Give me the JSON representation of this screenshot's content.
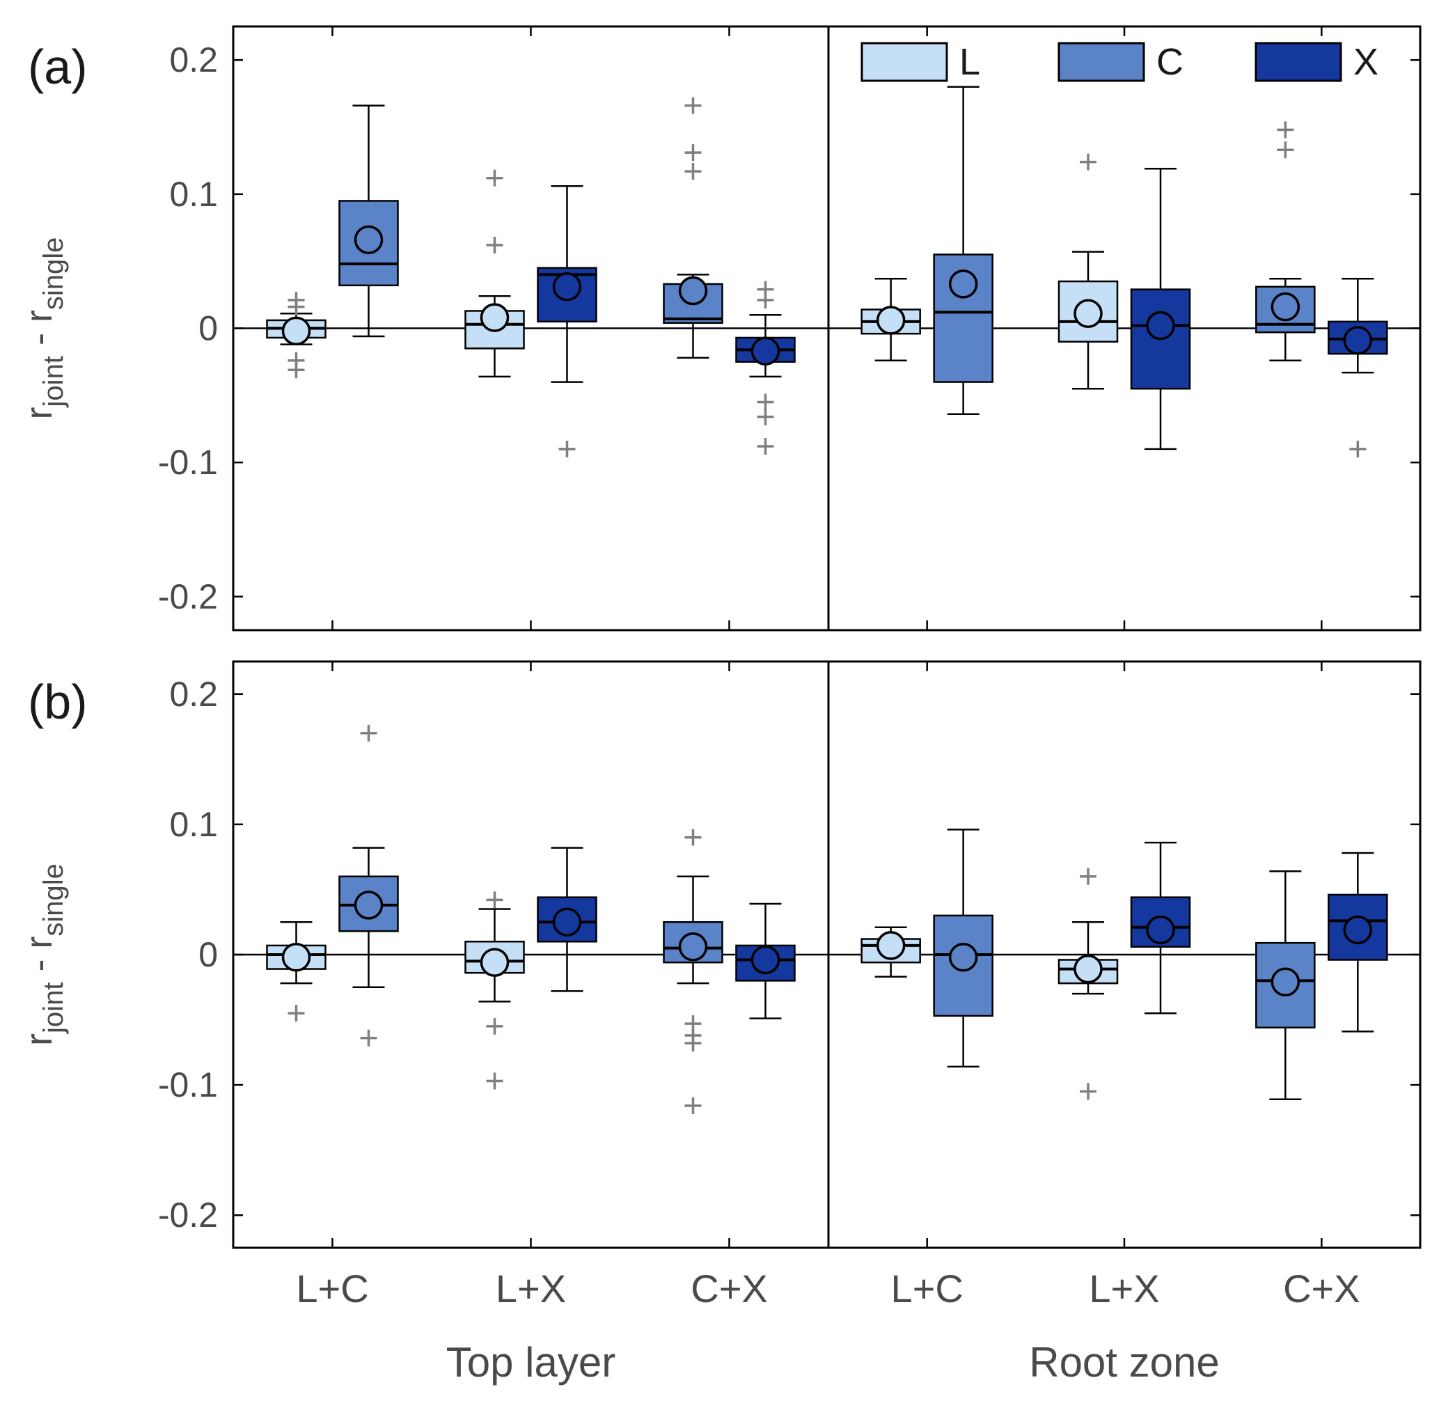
{
  "chart_data": {
    "type": "box",
    "title": "",
    "ylabel_parts": [
      {
        "text": "r",
        "sub": false
      },
      {
        "text": "joint",
        "sub": true
      },
      {
        "text": " - r",
        "sub": false
      },
      {
        "text": "single",
        "sub": true
      }
    ],
    "ylim": [
      -0.225,
      0.225
    ],
    "yticks": [
      {
        "label": "0.2",
        "value": 0.2
      },
      {
        "label": "0.1",
        "value": 0.1
      },
      {
        "label": "0",
        "value": 0
      },
      {
        "label": "-0.1",
        "value": -0.1
      },
      {
        "label": "-0.2",
        "value": -0.2
      }
    ],
    "categories": [
      "L+C",
      "L+X",
      "C+X"
    ],
    "legend": [
      "L",
      "C",
      "X"
    ],
    "series_colors": {
      "L": "#C5DFF6",
      "C": "#5B83C7",
      "X": "#15389E"
    },
    "axis_color": "#000000",
    "text_color": "#4a4a4a",
    "outlier_color": "#7f7f7f",
    "grid": false,
    "legend_position": "top-right-inside",
    "panels": [
      {
        "label": "(a)",
        "subpanels": [
          {
            "xlabel": "Top layer",
            "groups": [
              {
                "category": "L+C",
                "boxes": [
                  {
                    "series": "L",
                    "whisker_low": -0.012,
                    "q1": -0.007,
                    "median": 0.0,
                    "q3": 0.006,
                    "whisker_high": 0.011,
                    "mean": -0.002,
                    "outliers": [
                      0.021,
                      0.016,
                      -0.024,
                      -0.031
                    ]
                  },
                  {
                    "series": "C",
                    "whisker_low": -0.006,
                    "q1": 0.032,
                    "median": 0.048,
                    "q3": 0.095,
                    "whisker_high": 0.166,
                    "mean": 0.066,
                    "outliers": []
                  }
                ]
              },
              {
                "category": "L+X",
                "boxes": [
                  {
                    "series": "L",
                    "whisker_low": -0.036,
                    "q1": -0.015,
                    "median": 0.003,
                    "q3": 0.013,
                    "whisker_high": 0.024,
                    "mean": 0.008,
                    "outliers": [
                      0.112,
                      0.062
                    ]
                  },
                  {
                    "series": "X",
                    "whisker_low": -0.04,
                    "q1": 0.005,
                    "median": 0.04,
                    "q3": 0.045,
                    "whisker_high": 0.106,
                    "mean": 0.031,
                    "outliers": [
                      -0.09
                    ]
                  }
                ]
              },
              {
                "category": "C+X",
                "boxes": [
                  {
                    "series": "C",
                    "whisker_low": -0.022,
                    "q1": 0.004,
                    "median": 0.007,
                    "q3": 0.033,
                    "whisker_high": 0.04,
                    "mean": 0.028,
                    "outliers": [
                      0.166,
                      0.131,
                      0.117
                    ]
                  },
                  {
                    "series": "X",
                    "whisker_low": -0.036,
                    "q1": -0.025,
                    "median": -0.016,
                    "q3": -0.007,
                    "whisker_high": 0.01,
                    "mean": -0.017,
                    "outliers": [
                      0.029,
                      0.021,
                      -0.055,
                      -0.066,
                      -0.088
                    ]
                  }
                ]
              }
            ]
          },
          {
            "xlabel": "Root zone",
            "groups": [
              {
                "category": "L+C",
                "boxes": [
                  {
                    "series": "L",
                    "whisker_low": -0.024,
                    "q1": -0.004,
                    "median": 0.005,
                    "q3": 0.014,
                    "whisker_high": 0.037,
                    "mean": 0.006,
                    "outliers": []
                  },
                  {
                    "series": "C",
                    "whisker_low": -0.064,
                    "q1": -0.04,
                    "median": 0.012,
                    "q3": 0.055,
                    "whisker_high": 0.18,
                    "mean": 0.033,
                    "outliers": []
                  }
                ]
              },
              {
                "category": "L+X",
                "boxes": [
                  {
                    "series": "L",
                    "whisker_low": -0.045,
                    "q1": -0.01,
                    "median": 0.005,
                    "q3": 0.035,
                    "whisker_high": 0.057,
                    "mean": 0.011,
                    "outliers": [
                      0.124
                    ]
                  },
                  {
                    "series": "X",
                    "whisker_low": -0.09,
                    "q1": -0.045,
                    "median": 0.002,
                    "q3": 0.029,
                    "whisker_high": 0.119,
                    "mean": 0.002,
                    "outliers": []
                  }
                ]
              },
              {
                "category": "C+X",
                "boxes": [
                  {
                    "series": "C",
                    "whisker_low": -0.024,
                    "q1": -0.003,
                    "median": 0.003,
                    "q3": 0.031,
                    "whisker_high": 0.037,
                    "mean": 0.016,
                    "outliers": [
                      0.148,
                      0.133
                    ]
                  },
                  {
                    "series": "X",
                    "whisker_low": -0.033,
                    "q1": -0.019,
                    "median": -0.008,
                    "q3": 0.005,
                    "whisker_high": 0.037,
                    "mean": -0.009,
                    "outliers": [
                      -0.09
                    ]
                  }
                ]
              }
            ]
          }
        ]
      },
      {
        "label": "(b)",
        "subpanels": [
          {
            "xlabel": "Top layer",
            "groups": [
              {
                "category": "L+C",
                "boxes": [
                  {
                    "series": "L",
                    "whisker_low": -0.022,
                    "q1": -0.011,
                    "median": 0.0,
                    "q3": 0.007,
                    "whisker_high": 0.025,
                    "mean": -0.002,
                    "outliers": [
                      -0.045
                    ]
                  },
                  {
                    "series": "C",
                    "whisker_low": -0.025,
                    "q1": 0.018,
                    "median": 0.038,
                    "q3": 0.06,
                    "whisker_high": 0.082,
                    "mean": 0.038,
                    "outliers": [
                      0.17,
                      -0.064
                    ]
                  }
                ]
              },
              {
                "category": "L+X",
                "boxes": [
                  {
                    "series": "L",
                    "whisker_low": -0.036,
                    "q1": -0.014,
                    "median": -0.005,
                    "q3": 0.01,
                    "whisker_high": 0.035,
                    "mean": -0.006,
                    "outliers": [
                      0.042,
                      -0.055,
                      -0.097
                    ]
                  },
                  {
                    "series": "X",
                    "whisker_low": -0.028,
                    "q1": 0.01,
                    "median": 0.025,
                    "q3": 0.044,
                    "whisker_high": 0.082,
                    "mean": 0.025,
                    "outliers": []
                  }
                ]
              },
              {
                "category": "C+X",
                "boxes": [
                  {
                    "series": "C",
                    "whisker_low": -0.022,
                    "q1": -0.006,
                    "median": 0.005,
                    "q3": 0.025,
                    "whisker_high": 0.06,
                    "mean": 0.006,
                    "outliers": [
                      0.09,
                      -0.053,
                      -0.062,
                      -0.068,
                      -0.116
                    ]
                  },
                  {
                    "series": "X",
                    "whisker_low": -0.049,
                    "q1": -0.02,
                    "median": -0.004,
                    "q3": 0.007,
                    "whisker_high": 0.039,
                    "mean": -0.004,
                    "outliers": []
                  }
                ]
              }
            ]
          },
          {
            "xlabel": "Root zone",
            "groups": [
              {
                "category": "L+C",
                "boxes": [
                  {
                    "series": "L",
                    "whisker_low": -0.017,
                    "q1": -0.006,
                    "median": 0.007,
                    "q3": 0.012,
                    "whisker_high": 0.021,
                    "mean": 0.007,
                    "outliers": []
                  },
                  {
                    "series": "C",
                    "whisker_low": -0.086,
                    "q1": -0.047,
                    "median": 0.0,
                    "q3": 0.03,
                    "whisker_high": 0.096,
                    "mean": -0.002,
                    "outliers": []
                  }
                ]
              },
              {
                "category": "L+X",
                "boxes": [
                  {
                    "series": "L",
                    "whisker_low": -0.03,
                    "q1": -0.022,
                    "median": -0.011,
                    "q3": -0.004,
                    "whisker_high": 0.025,
                    "mean": -0.011,
                    "outliers": [
                      0.06,
                      -0.105
                    ]
                  },
                  {
                    "series": "X",
                    "whisker_low": -0.045,
                    "q1": 0.006,
                    "median": 0.021,
                    "q3": 0.044,
                    "whisker_high": 0.086,
                    "mean": 0.019,
                    "outliers": []
                  }
                ]
              },
              {
                "category": "C+X",
                "boxes": [
                  {
                    "series": "C",
                    "whisker_low": -0.111,
                    "q1": -0.056,
                    "median": -0.02,
                    "q3": 0.009,
                    "whisker_high": 0.064,
                    "mean": -0.021,
                    "outliers": []
                  },
                  {
                    "series": "X",
                    "whisker_low": -0.059,
                    "q1": -0.004,
                    "median": 0.026,
                    "q3": 0.046,
                    "whisker_high": 0.078,
                    "mean": 0.019,
                    "outliers": []
                  }
                ]
              }
            ]
          }
        ]
      }
    ]
  }
}
